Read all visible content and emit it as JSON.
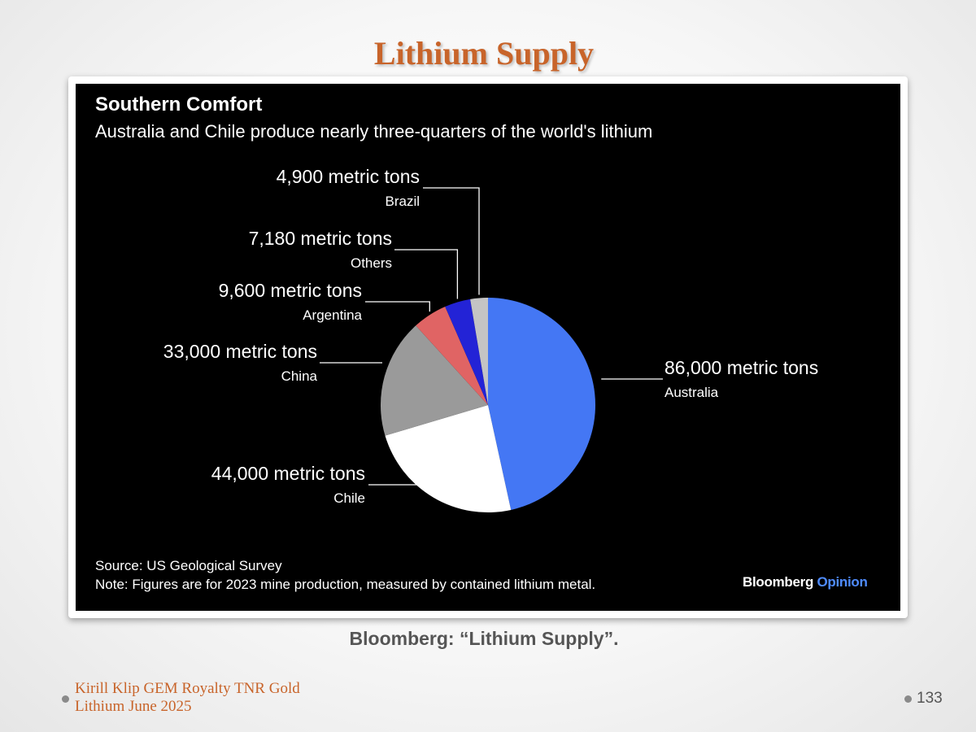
{
  "slide": {
    "title": "Lithium Supply",
    "caption": "Bloomberg: “Lithium Supply”.",
    "footer_line1": "Kirill Klip GEM Royalty TNR Gold",
    "footer_line2": "Lithium June 2025",
    "page_number": "133"
  },
  "chart_data": {
    "type": "pie",
    "title": "Southern Comfort",
    "subtitle": "Australia and Chile produce nearly three-quarters of the world's lithium",
    "unit": "metric tons",
    "slices": [
      {
        "name": "Australia",
        "value": 86000,
        "label": "86,000 metric tons",
        "color": "#4477f4"
      },
      {
        "name": "Chile",
        "value": 44000,
        "label": "44,000 metric tons",
        "color": "#ffffff"
      },
      {
        "name": "China",
        "value": 33000,
        "label": "33,000 metric tons",
        "color": "#9a9a9a"
      },
      {
        "name": "Argentina",
        "value": 9600,
        "label": "9,600 metric tons",
        "color": "#e06464"
      },
      {
        "name": "Others",
        "value": 7180,
        "label": "7,180 metric tons",
        "color": "#2323d6"
      },
      {
        "name": "Brazil",
        "value": 4900,
        "label": "4,900 metric tons",
        "color": "#c4c4c4"
      }
    ],
    "source": "Source: US Geological Survey",
    "note": "Note: Figures are for 2023 mine production, measured by contained lithium metal.",
    "brand": "Bloomberg",
    "brand_suffix": "Opinion"
  }
}
